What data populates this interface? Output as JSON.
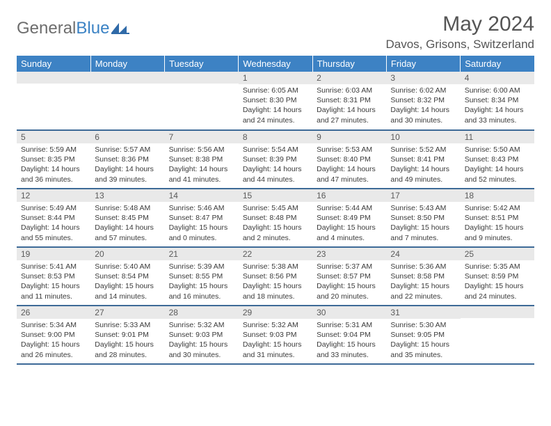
{
  "brand": {
    "part1": "General",
    "part2": "Blue"
  },
  "title": "May 2024",
  "location": "Davos, Grisons, Switzerland",
  "colors": {
    "header_bg": "#3d82c4",
    "header_text": "#ffffff",
    "row_divider": "#3d6a97",
    "daynum_bg": "#e9e9e9",
    "text": "#3a3a3a",
    "logo_gray": "#6d6d6d",
    "logo_blue": "#3b82c4"
  },
  "daysOfWeek": [
    "Sunday",
    "Monday",
    "Tuesday",
    "Wednesday",
    "Thursday",
    "Friday",
    "Saturday"
  ],
  "weeks": [
    [
      null,
      null,
      null,
      {
        "n": "1",
        "sunrise": "6:05 AM",
        "sunset": "8:30 PM",
        "daylight": "14 hours and 24 minutes."
      },
      {
        "n": "2",
        "sunrise": "6:03 AM",
        "sunset": "8:31 PM",
        "daylight": "14 hours and 27 minutes."
      },
      {
        "n": "3",
        "sunrise": "6:02 AM",
        "sunset": "8:32 PM",
        "daylight": "14 hours and 30 minutes."
      },
      {
        "n": "4",
        "sunrise": "6:00 AM",
        "sunset": "8:34 PM",
        "daylight": "14 hours and 33 minutes."
      }
    ],
    [
      {
        "n": "5",
        "sunrise": "5:59 AM",
        "sunset": "8:35 PM",
        "daylight": "14 hours and 36 minutes."
      },
      {
        "n": "6",
        "sunrise": "5:57 AM",
        "sunset": "8:36 PM",
        "daylight": "14 hours and 39 minutes."
      },
      {
        "n": "7",
        "sunrise": "5:56 AM",
        "sunset": "8:38 PM",
        "daylight": "14 hours and 41 minutes."
      },
      {
        "n": "8",
        "sunrise": "5:54 AM",
        "sunset": "8:39 PM",
        "daylight": "14 hours and 44 minutes."
      },
      {
        "n": "9",
        "sunrise": "5:53 AM",
        "sunset": "8:40 PM",
        "daylight": "14 hours and 47 minutes."
      },
      {
        "n": "10",
        "sunrise": "5:52 AM",
        "sunset": "8:41 PM",
        "daylight": "14 hours and 49 minutes."
      },
      {
        "n": "11",
        "sunrise": "5:50 AM",
        "sunset": "8:43 PM",
        "daylight": "14 hours and 52 minutes."
      }
    ],
    [
      {
        "n": "12",
        "sunrise": "5:49 AM",
        "sunset": "8:44 PM",
        "daylight": "14 hours and 55 minutes."
      },
      {
        "n": "13",
        "sunrise": "5:48 AM",
        "sunset": "8:45 PM",
        "daylight": "14 hours and 57 minutes."
      },
      {
        "n": "14",
        "sunrise": "5:46 AM",
        "sunset": "8:47 PM",
        "daylight": "15 hours and 0 minutes."
      },
      {
        "n": "15",
        "sunrise": "5:45 AM",
        "sunset": "8:48 PM",
        "daylight": "15 hours and 2 minutes."
      },
      {
        "n": "16",
        "sunrise": "5:44 AM",
        "sunset": "8:49 PM",
        "daylight": "15 hours and 4 minutes."
      },
      {
        "n": "17",
        "sunrise": "5:43 AM",
        "sunset": "8:50 PM",
        "daylight": "15 hours and 7 minutes."
      },
      {
        "n": "18",
        "sunrise": "5:42 AM",
        "sunset": "8:51 PM",
        "daylight": "15 hours and 9 minutes."
      }
    ],
    [
      {
        "n": "19",
        "sunrise": "5:41 AM",
        "sunset": "8:53 PM",
        "daylight": "15 hours and 11 minutes."
      },
      {
        "n": "20",
        "sunrise": "5:40 AM",
        "sunset": "8:54 PM",
        "daylight": "15 hours and 14 minutes."
      },
      {
        "n": "21",
        "sunrise": "5:39 AM",
        "sunset": "8:55 PM",
        "daylight": "15 hours and 16 minutes."
      },
      {
        "n": "22",
        "sunrise": "5:38 AM",
        "sunset": "8:56 PM",
        "daylight": "15 hours and 18 minutes."
      },
      {
        "n": "23",
        "sunrise": "5:37 AM",
        "sunset": "8:57 PM",
        "daylight": "15 hours and 20 minutes."
      },
      {
        "n": "24",
        "sunrise": "5:36 AM",
        "sunset": "8:58 PM",
        "daylight": "15 hours and 22 minutes."
      },
      {
        "n": "25",
        "sunrise": "5:35 AM",
        "sunset": "8:59 PM",
        "daylight": "15 hours and 24 minutes."
      }
    ],
    [
      {
        "n": "26",
        "sunrise": "5:34 AM",
        "sunset": "9:00 PM",
        "daylight": "15 hours and 26 minutes."
      },
      {
        "n": "27",
        "sunrise": "5:33 AM",
        "sunset": "9:01 PM",
        "daylight": "15 hours and 28 minutes."
      },
      {
        "n": "28",
        "sunrise": "5:32 AM",
        "sunset": "9:03 PM",
        "daylight": "15 hours and 30 minutes."
      },
      {
        "n": "29",
        "sunrise": "5:32 AM",
        "sunset": "9:03 PM",
        "daylight": "15 hours and 31 minutes."
      },
      {
        "n": "30",
        "sunrise": "5:31 AM",
        "sunset": "9:04 PM",
        "daylight": "15 hours and 33 minutes."
      },
      {
        "n": "31",
        "sunrise": "5:30 AM",
        "sunset": "9:05 PM",
        "daylight": "15 hours and 35 minutes."
      },
      null
    ]
  ],
  "labels": {
    "sunrise": "Sunrise:",
    "sunset": "Sunset:",
    "daylight": "Daylight:"
  }
}
